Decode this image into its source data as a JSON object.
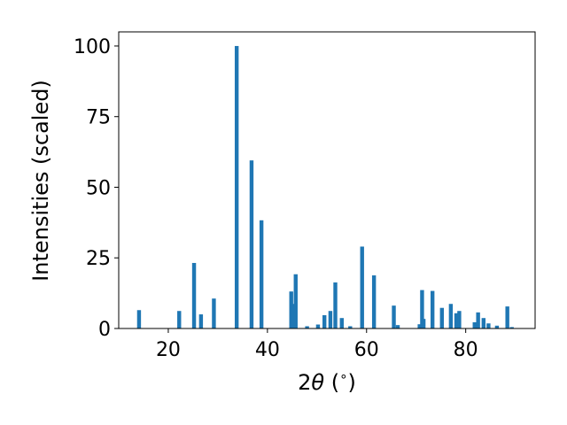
{
  "chart_data": {
    "type": "bar",
    "xlabel_prefix": "2",
    "xlabel_symbol": "θ",
    "xlabel_suffix": " (",
    "xlabel_degree": "∘",
    "xlabel_close": ")",
    "ylabel": "Intensities (scaled)",
    "xlim": [
      10,
      94
    ],
    "ylim": [
      0,
      105
    ],
    "xticks": [
      20,
      40,
      60,
      80
    ],
    "yticks": [
      0,
      25,
      50,
      75,
      100
    ],
    "bar_color": "#1f77b4",
    "x": [
      14.1,
      22.2,
      25.2,
      26.6,
      29.2,
      33.8,
      36.8,
      38.8,
      44.8,
      45.2,
      45.7,
      48.0,
      50.2,
      51.5,
      52.7,
      53.7,
      55.0,
      56.7,
      59.1,
      61.5,
      65.5,
      66.3,
      70.7,
      71.2,
      71.5,
      73.3,
      75.2,
      77.0,
      78.1,
      78.7,
      81.8,
      82.5,
      83.6,
      84.6,
      86.3,
      88.4,
      89.3
    ],
    "values": [
      6.5,
      6.2,
      23.2,
      5.0,
      10.6,
      100.0,
      59.5,
      38.3,
      13.1,
      8.7,
      19.2,
      0.8,
      1.4,
      4.7,
      6.2,
      16.3,
      3.7,
      0.8,
      29.0,
      18.8,
      8.1,
      1.2,
      1.5,
      13.6,
      3.4,
      13.3,
      7.3,
      8.7,
      5.4,
      6.2,
      2.2,
      5.7,
      3.7,
      1.8,
      1.0,
      7.8,
      0.5
    ],
    "grid": false,
    "legend": false
  }
}
